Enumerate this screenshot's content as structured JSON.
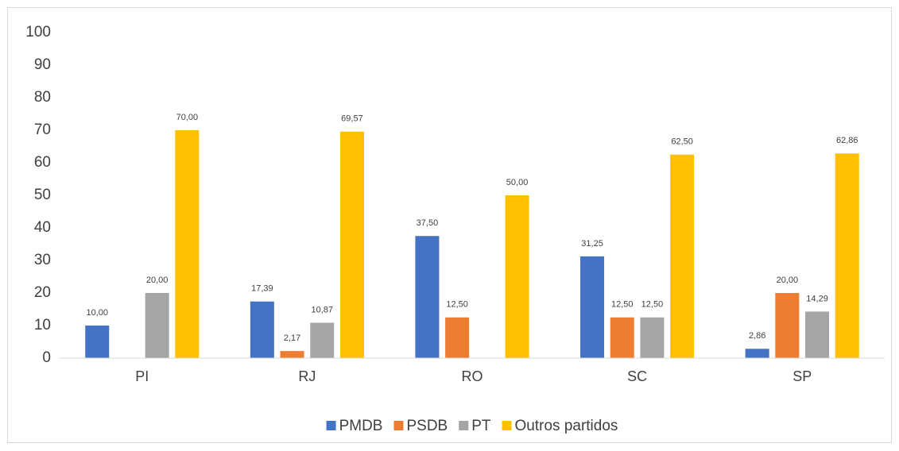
{
  "chart_data": {
    "type": "bar",
    "categories": [
      "PI",
      "RJ",
      "RO",
      "SC",
      "SP"
    ],
    "series": [
      {
        "name": "PMDB",
        "color": "#4472c4",
        "values": [
          10,
          17.39,
          37.5,
          31.25,
          2.86
        ],
        "value_labels": [
          "10,00",
          "17,39",
          "37,50",
          "31,25",
          "2,86"
        ]
      },
      {
        "name": "PSDB",
        "color": "#ed7d31",
        "values": [
          null,
          2.17,
          12.5,
          12.5,
          20
        ],
        "value_labels": [
          null,
          "2,17",
          "12,50",
          "12,50",
          "20,00"
        ]
      },
      {
        "name": "PT",
        "color": "#a5a5a5",
        "values": [
          20,
          10.87,
          null,
          12.5,
          14.29
        ],
        "value_labels": [
          "20,00",
          "10,87",
          null,
          "12,50",
          "14,29"
        ]
      },
      {
        "name": "Outros partidos",
        "color": "#ffc000",
        "values": [
          70,
          69.57,
          50,
          62.5,
          62.86
        ],
        "value_labels": [
          "70,00",
          "69,57",
          "50,00",
          "62,50",
          "62,86"
        ]
      }
    ],
    "ylim": [
      0,
      100
    ],
    "yticks": [
      0,
      10,
      20,
      30,
      40,
      50,
      60,
      70,
      80,
      90,
      100
    ],
    "grid": false,
    "legend": "bottom"
  }
}
